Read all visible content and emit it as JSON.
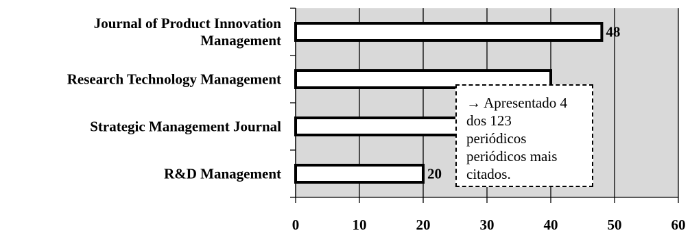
{
  "chart_data": {
    "type": "bar",
    "orientation": "horizontal",
    "categories": [
      "Journal of Product Innovation Management",
      "Research Technology Management",
      "Strategic Management Journal",
      "R&D Management"
    ],
    "category_lines": [
      [
        "Journal of Product Innovation",
        "Management"
      ],
      [
        "Research Technology Management"
      ],
      [
        "Strategic Management Journal"
      ],
      [
        "R&D Management"
      ]
    ],
    "values": [
      48,
      null,
      null,
      20
    ],
    "data_labels": [
      "48",
      "",
      "",
      "20"
    ],
    "xlim": [
      0,
      60
    ],
    "xticks": [
      "0",
      "10",
      "20",
      "30",
      "40",
      "50",
      "60"
    ],
    "grid": true,
    "plot_background": "#d9d9d9",
    "bar_fill": "#ffffff",
    "bar_edge": "#000000",
    "annotation": {
      "lines": [
        "→ Apresentado 4",
        "dos 123",
        "periódicos",
        "periódicos mais",
        "citados."
      ]
    }
  }
}
